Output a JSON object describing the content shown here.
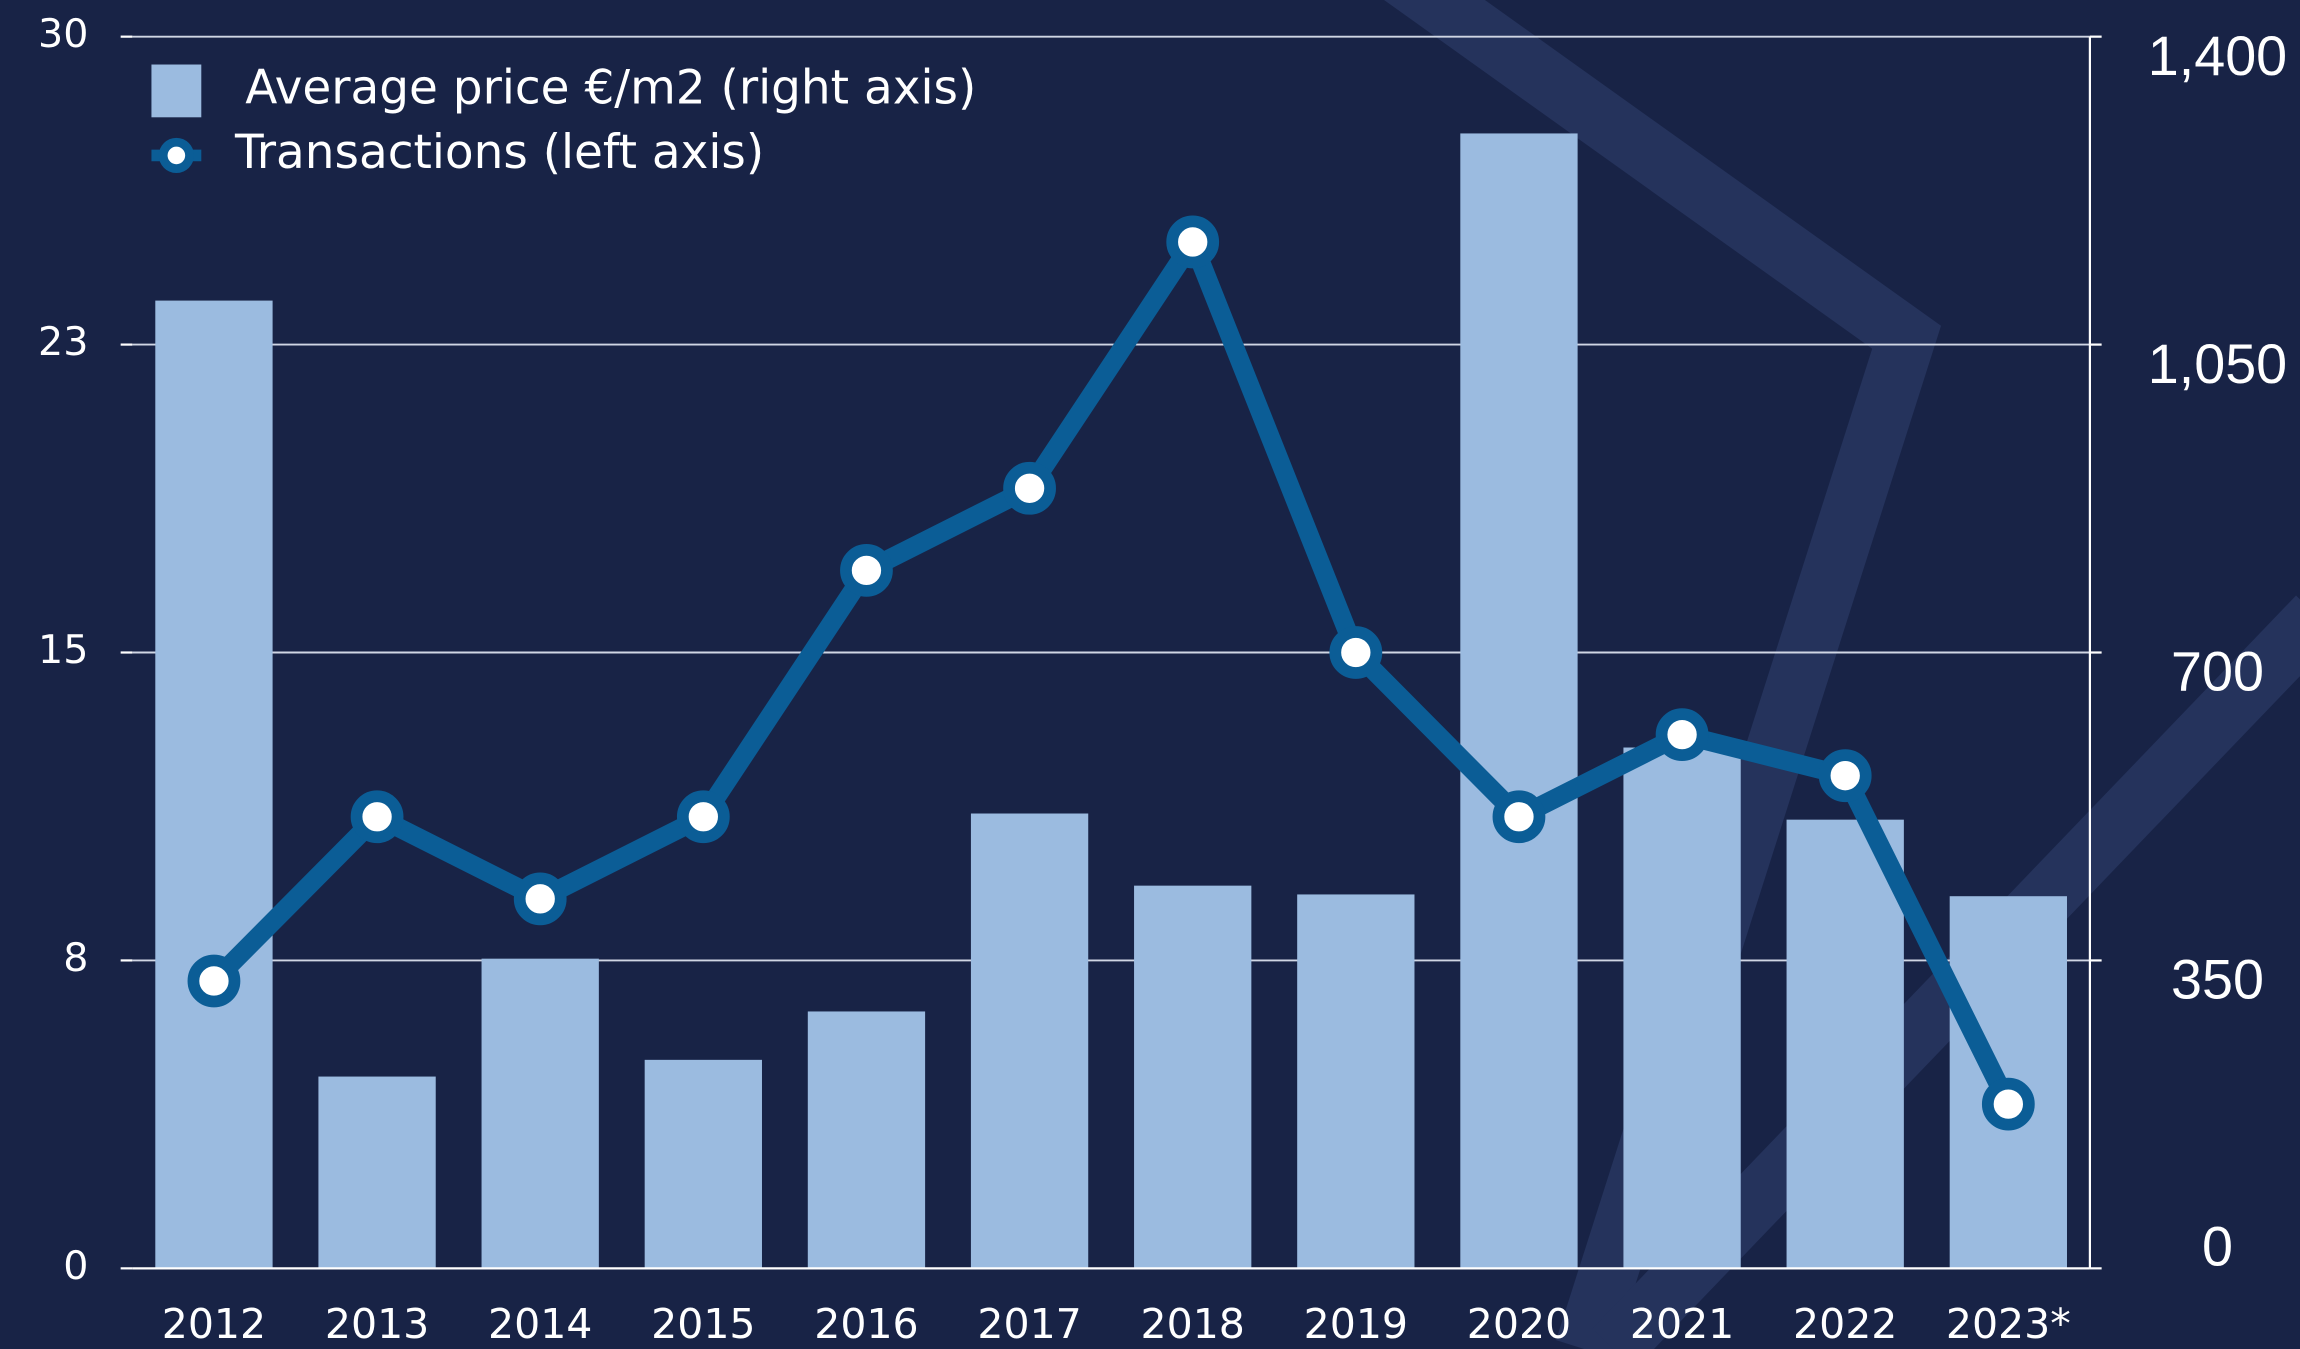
{
  "chart_data": {
    "type": "bar_line",
    "categories": [
      "2012",
      "2013",
      "2014",
      "2015",
      "2016",
      "2017",
      "2018",
      "2019",
      "2020",
      "2021",
      "2022",
      "2023*"
    ],
    "series": [
      {
        "name": "Average price €/m2 (right axis)",
        "type": "bar",
        "axis": "y2",
        "color": "#9bbbe0",
        "values": [
          1100,
          218,
          352,
          237,
          292,
          517,
          435,
          425,
          1290,
          592,
          510,
          423
        ]
      },
      {
        "name": "Transactions (left axis)",
        "type": "line",
        "axis": "y",
        "color": "#0b5d96",
        "values": [
          7,
          11,
          9,
          11,
          17,
          19,
          25,
          15,
          11,
          13,
          12,
          4
        ]
      }
    ],
    "ylim": [
      0,
      30
    ],
    "yticks": [
      0,
      {
        "value": 7.5,
        "label": "8"
      },
      15,
      {
        "value": 22.5,
        "label": "23"
      },
      30
    ],
    "y2lim": [
      0,
      1400
    ],
    "y2ticks": [
      0,
      350,
      700,
      {
        "value": 1050,
        "label": "1,050"
      },
      {
        "value": 1400,
        "label": "1,400"
      }
    ],
    "grid": true,
    "legend": "top-left"
  }
}
